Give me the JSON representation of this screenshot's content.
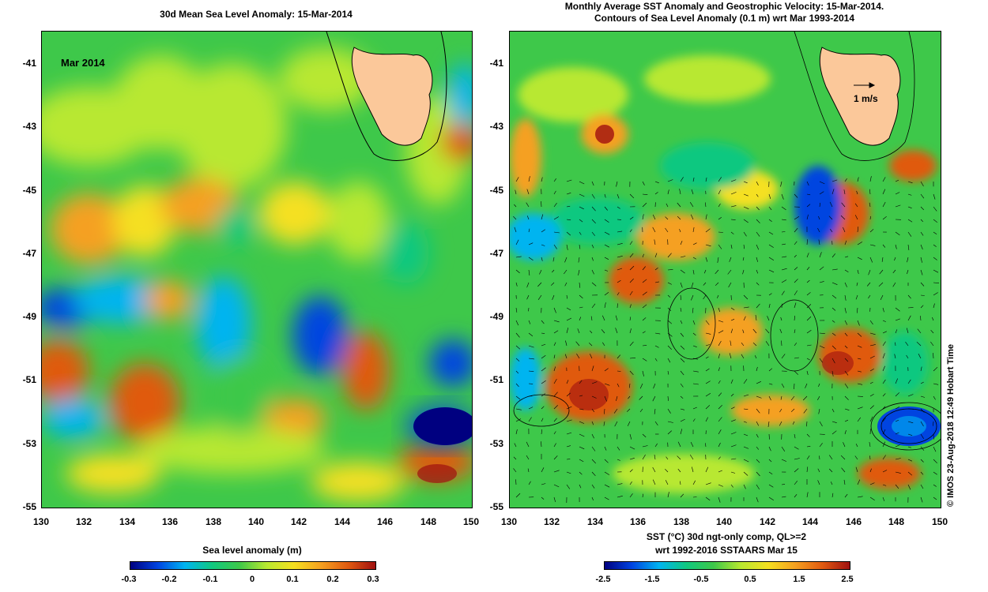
{
  "left_panel": {
    "title": "30d Mean Sea Level Anomaly: 15-Mar-2014",
    "inset_label": "Mar 2014",
    "colorbar_label": "Sea level anomaly (m)",
    "colorbar_ticks": [
      "-0.3",
      "-0.2",
      "-0.1",
      "0",
      "0.1",
      "0.2",
      "0.3"
    ]
  },
  "right_panel": {
    "title_line1": "Monthly Average SST Anomaly  and Geostrophic Velocity: 15-Mar-2014.",
    "title_line2": "Contours of Sea Level Anomaly (0.1 m) wrt Mar 1993-2014",
    "velocity_scale_label": "1 m/s",
    "colorbar_label_line1": "SST (°C) 30d ngt-only comp, QL>=2",
    "colorbar_label_line2": "wrt 1992-2016 SSTAARS Mar 15",
    "colorbar_ticks": [
      "-2.5",
      "-1.5",
      "-0.5",
      "0.5",
      "1.5",
      "2.5"
    ]
  },
  "axes": {
    "lat_ticks": [
      "-41",
      "-43",
      "-45",
      "-47",
      "-49",
      "-51",
      "-53",
      "-55"
    ],
    "lon_ticks": [
      "130",
      "132",
      "134",
      "136",
      "138",
      "140",
      "142",
      "144",
      "146",
      "148",
      "150"
    ]
  },
  "credit": "© IMOS 23-Aug-2018 12:49 Hobart Time",
  "colors": {
    "land": "#fbc89a",
    "ocean_base": "#3ec84a",
    "scale": [
      "#000080",
      "#0044e0",
      "#00b4f0",
      "#10c880",
      "#3ec84a",
      "#b8e830",
      "#f5e020",
      "#f5a020",
      "#e05a10",
      "#a01010"
    ]
  }
}
